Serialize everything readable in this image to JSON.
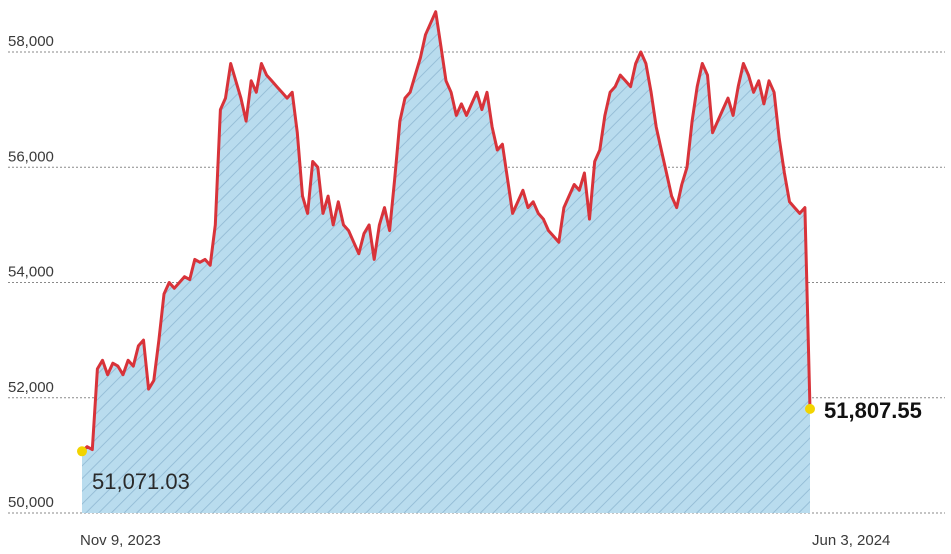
{
  "colors": {
    "line": "#d8333a",
    "area_fill": "#b9dcee",
    "hatch": "#8fb8d2",
    "grid": "#8a8a8a",
    "marker": "#f2d400",
    "background": "#ffffff"
  },
  "chart_data": {
    "type": "area",
    "title": "",
    "xlabel": "",
    "ylabel": "",
    "ylim": [
      50000,
      58600
    ],
    "yticks": [
      {
        "value": 50000,
        "label": "50,000"
      },
      {
        "value": 52000,
        "label": "52,000"
      },
      {
        "value": 54000,
        "label": "54,000"
      },
      {
        "value": 56000,
        "label": "56,000"
      },
      {
        "value": 58000,
        "label": "58,000"
      }
    ],
    "grid": true,
    "x_start_label": "Nov 9, 2023",
    "x_end_label": "Jun 3, 2024",
    "annotations": {
      "start_value": "51,071.03",
      "end_value": "51,807.55"
    },
    "series": [
      {
        "values": [
          51071,
          51150,
          51100,
          52500,
          52650,
          52400,
          52600,
          52550,
          52400,
          52650,
          52550,
          52900,
          53000,
          52150,
          52300,
          53000,
          53800,
          54000,
          53900,
          54000,
          54100,
          54050,
          54400,
          54350,
          54400,
          54300,
          55000,
          57000,
          57200,
          57800,
          57500,
          57200,
          56800,
          57500,
          57300,
          57800,
          57600,
          57500,
          57400,
          57300,
          57200,
          57300,
          56600,
          55500,
          55200,
          56100,
          56000,
          55200,
          55500,
          55000,
          55400,
          55000,
          54900,
          54700,
          54500,
          54850,
          55000,
          54400,
          55000,
          55300,
          54900,
          55800,
          56800,
          57200,
          57300,
          57600,
          57900,
          58300,
          58500,
          58700,
          58100,
          57500,
          57300,
          56900,
          57100,
          56900,
          57100,
          57300,
          57000,
          57300,
          56700,
          56300,
          56400,
          55800,
          55200,
          55400,
          55600,
          55300,
          55400,
          55200,
          55100,
          54900,
          54800,
          54700,
          55300,
          55500,
          55700,
          55600,
          55900,
          55100,
          56100,
          56300,
          56900,
          57300,
          57400,
          57600,
          57500,
          57400,
          57800,
          58000,
          57800,
          57300,
          56700,
          56300,
          55900,
          55500,
          55300,
          55700,
          56000,
          56800,
          57400,
          57800,
          57600,
          56600,
          56800,
          57000,
          57200,
          56900,
          57400,
          57800,
          57600,
          57300,
          57500,
          57100,
          57500,
          57300,
          56500,
          55900,
          55400,
          55300,
          55200,
          55300,
          51807
        ]
      }
    ]
  }
}
